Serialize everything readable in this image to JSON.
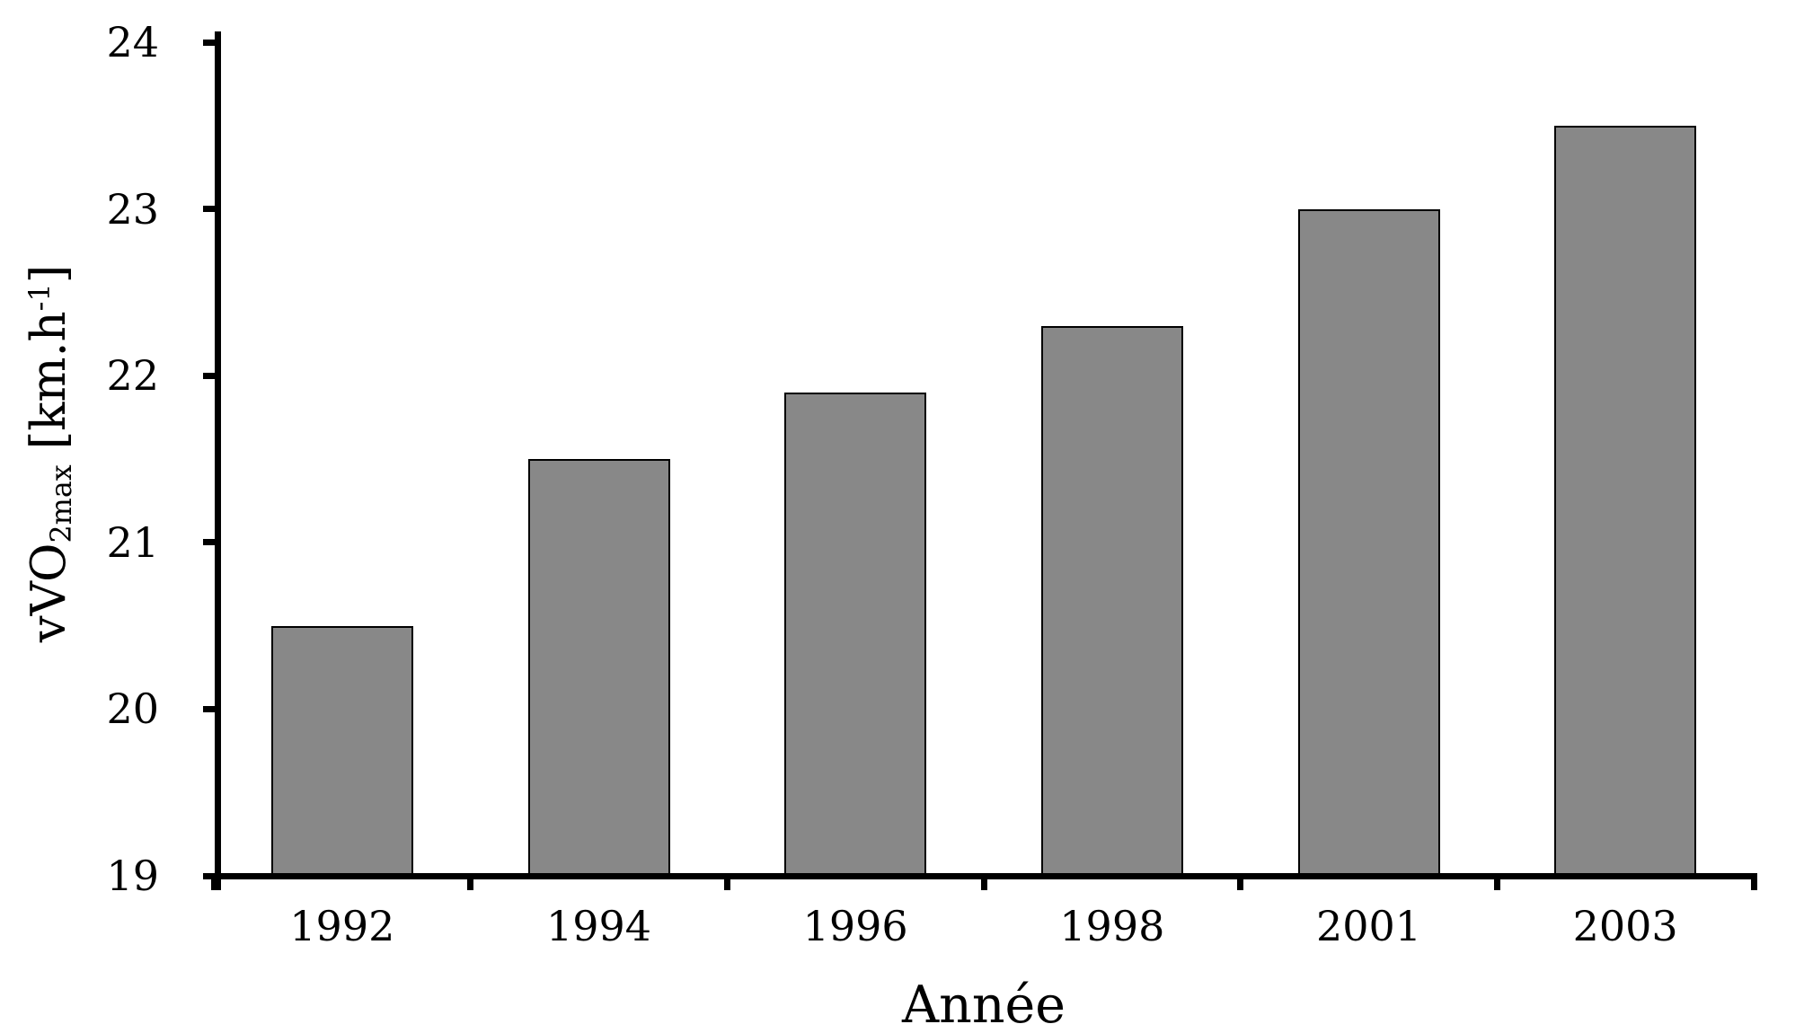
{
  "chart_data": {
    "type": "bar",
    "title": "",
    "categories": [
      "1992",
      "1994",
      "1996",
      "1998",
      "2001",
      "2003"
    ],
    "values": [
      20.5,
      21.5,
      21.9,
      22.3,
      23.0,
      23.5
    ],
    "xlabel": "Année",
    "ylabel": "vVO2max [km.h-1]",
    "ylabel_parts": {
      "main": "vVO",
      "sub": "2max",
      "mid": " [km.h",
      "sup": "-1",
      "end": "]"
    },
    "ylim": [
      19,
      24
    ],
    "yticks": [
      19,
      20,
      21,
      22,
      23,
      24
    ],
    "grid": false,
    "legend": null,
    "bar_color": "#888888",
    "bar_border_color": "#000000",
    "axis_color": "#000000",
    "background_color": "#ffffff"
  }
}
